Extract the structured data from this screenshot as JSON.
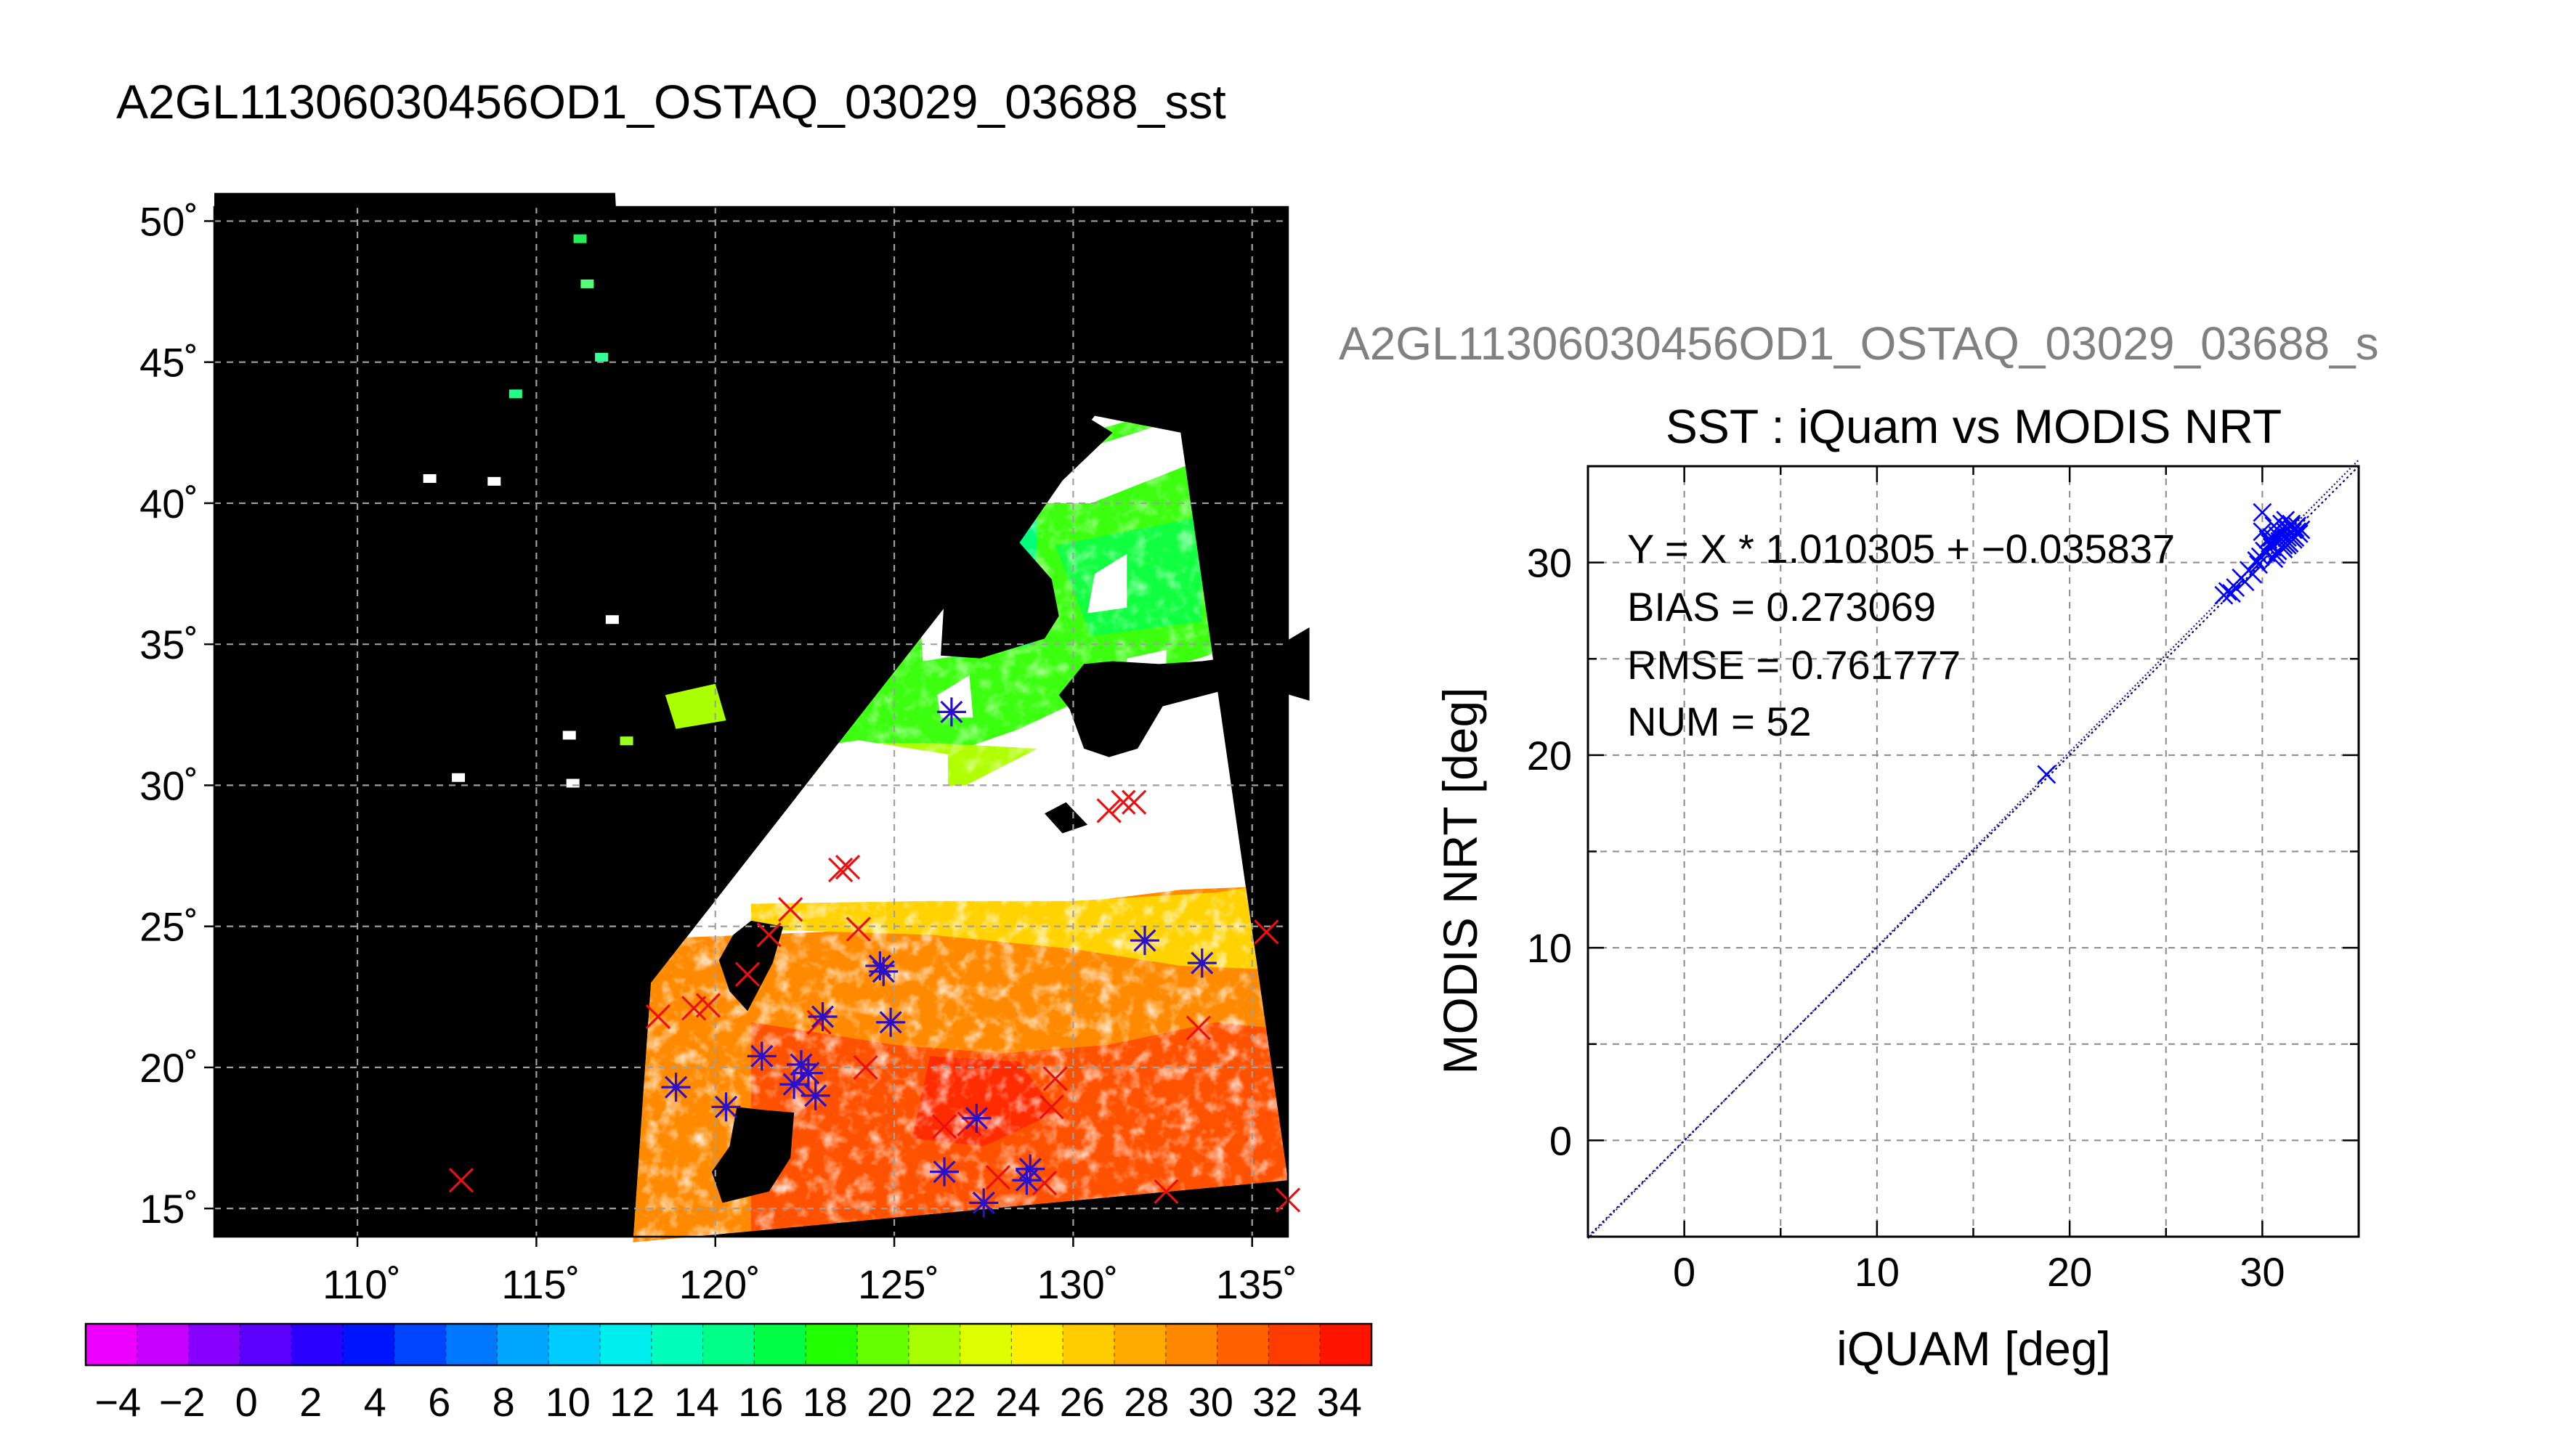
{
  "page_title": "A2GL11306030456OD1_OSTAQ_03029_03688_sst",
  "chart_data": [
    {
      "type": "heatmap",
      "name": "sst-map",
      "map_projection": "equirectangular",
      "lon_range": [
        106,
        136
      ],
      "lat_range": [
        14,
        50.5
      ],
      "lon_ticks": [
        110,
        115,
        120,
        125,
        130,
        135
      ],
      "lat_ticks": [
        15,
        20,
        25,
        30,
        35,
        40,
        45,
        50
      ],
      "lon_tick_labels": [
        "110˚",
        "115˚",
        "120˚",
        "125˚",
        "130˚",
        "135˚"
      ],
      "lat_tick_labels": [
        "15˚",
        "20˚",
        "25˚",
        "30˚",
        "35˚",
        "40˚",
        "45˚",
        "50˚"
      ],
      "grid": true,
      "background_color": "#000000",
      "cloud_color": "#ffffff",
      "swath_corners_lonlat": [
        [
          118.2,
          23.0
        ],
        [
          130.6,
          43.1
        ],
        [
          133.0,
          42.5
        ],
        [
          136.0,
          16.0
        ],
        [
          117.7,
          13.8
        ]
      ],
      "markers_red_x": [
        [
          112.9,
          16.0
        ],
        [
          118.4,
          21.8
        ],
        [
          119.4,
          22.1
        ],
        [
          119.8,
          22.2
        ],
        [
          121.5,
          24.7
        ],
        [
          122.1,
          25.6
        ],
        [
          122.9,
          21.6
        ],
        [
          123.5,
          27.0
        ],
        [
          123.7,
          27.1
        ],
        [
          124.0,
          24.9
        ],
        [
          126.4,
          17.9
        ],
        [
          127.1,
          18.0
        ],
        [
          127.9,
          16.1
        ],
        [
          129.2,
          15.9
        ],
        [
          129.5,
          19.6
        ],
        [
          129.4,
          18.6
        ],
        [
          131.0,
          29.1
        ],
        [
          131.7,
          29.4
        ],
        [
          131.4,
          29.4
        ],
        [
          133.5,
          21.4
        ],
        [
          135.4,
          24.8
        ],
        [
          132.6,
          15.6
        ],
        [
          136.0,
          15.3
        ],
        [
          120.9,
          23.3
        ],
        [
          124.2,
          20.0
        ]
      ],
      "markers_blue_asterisk": [
        [
          118.9,
          19.3
        ],
        [
          120.3,
          18.6
        ],
        [
          121.3,
          20.4
        ],
        [
          122.2,
          19.4
        ],
        [
          122.4,
          20.1
        ],
        [
          122.8,
          19.0
        ],
        [
          123.0,
          21.8
        ],
        [
          124.7,
          23.4
        ],
        [
          124.9,
          21.6
        ],
        [
          126.6,
          32.6
        ],
        [
          126.4,
          16.3
        ],
        [
          127.3,
          18.2
        ],
        [
          127.5,
          15.2
        ],
        [
          128.7,
          16.0
        ],
        [
          128.8,
          16.4
        ],
        [
          132.0,
          24.5
        ],
        [
          133.6,
          23.7
        ],
        [
          122.6,
          19.8
        ],
        [
          124.6,
          23.6
        ]
      ],
      "colorbar": {
        "min": -5,
        "max": 35,
        "tick_values": [
          -4,
          -2,
          0,
          2,
          4,
          6,
          8,
          10,
          12,
          14,
          16,
          18,
          20,
          22,
          24,
          26,
          28,
          30,
          32,
          34
        ],
        "tick_labels": [
          "−4",
          "−2",
          "0",
          "2",
          "4",
          "6",
          "8",
          "10",
          "12",
          "14",
          "16",
          "18",
          "20",
          "22",
          "24",
          "26",
          "28",
          "30",
          "32",
          "34"
        ],
        "colors": [
          "#ee00ff",
          "#c700ff",
          "#8800ff",
          "#5c00ff",
          "#2a00ff",
          "#0014ff",
          "#0044ff",
          "#0077ff",
          "#00a6ff",
          "#00ccff",
          "#00eeee",
          "#00ffbb",
          "#00ff88",
          "#00ff44",
          "#22ff00",
          "#66ff00",
          "#a8ff00",
          "#ddff00",
          "#ffee00",
          "#ffcc00",
          "#ffaa00",
          "#ff8800",
          "#ff6000",
          "#ff3c00",
          "#ff1400"
        ]
      }
    },
    {
      "type": "scatter",
      "name": "sst-scatter",
      "suptitle": "A2GL11306030456OD1_OSTAQ_03029_03688_s",
      "title": "SST : iQuam vs MODIS NRT",
      "xlabel": "iQUAM [deg]",
      "ylabel": "MODIS NRT [deg]",
      "xlim": [
        -5,
        35
      ],
      "ylim": [
        -5,
        35
      ],
      "xticks": [
        0,
        10,
        20,
        30
      ],
      "yticks": [
        0,
        10,
        20,
        30
      ],
      "grid": true,
      "marker_color": "#0000ff",
      "fit": {
        "slope": 1.010305,
        "intercept": -0.035837
      },
      "annotations": [
        "Y = X * 1.010305 + −0.035837",
        "BIAS = 0.273069",
        "RMSE = 0.761777",
        "NUM = 52"
      ],
      "points": [
        [
          18.8,
          19.0
        ],
        [
          28.0,
          28.3
        ],
        [
          28.2,
          28.5
        ],
        [
          28.4,
          28.4
        ],
        [
          28.6,
          28.7
        ],
        [
          28.9,
          29.2
        ],
        [
          29.1,
          29.0
        ],
        [
          29.3,
          29.6
        ],
        [
          29.5,
          29.4
        ],
        [
          29.7,
          30.1
        ],
        [
          29.8,
          29.9
        ],
        [
          30.0,
          32.6
        ],
        [
          30.0,
          31.6
        ],
        [
          30.1,
          30.6
        ],
        [
          30.2,
          30.5
        ],
        [
          30.3,
          31.2
        ],
        [
          30.4,
          31.0
        ],
        [
          30.5,
          30.8
        ],
        [
          30.6,
          31.9
        ],
        [
          30.7,
          30.4
        ],
        [
          30.8,
          31.4
        ],
        [
          30.9,
          31.1
        ],
        [
          31.0,
          32.0
        ],
        [
          31.0,
          31.2
        ],
        [
          31.1,
          30.7
        ],
        [
          31.2,
          31.6
        ],
        [
          31.3,
          31.3
        ],
        [
          31.3,
          31.8
        ],
        [
          31.4,
          31.0
        ],
        [
          31.5,
          31.5
        ],
        [
          31.5,
          32.0
        ],
        [
          31.6,
          31.7
        ],
        [
          31.7,
          31.3
        ],
        [
          31.8,
          31.9
        ],
        [
          31.9,
          31.5
        ],
        [
          32.0,
          31.7
        ],
        [
          31.1,
          30.9
        ],
        [
          30.6,
          30.2
        ],
        [
          31.2,
          32.2
        ],
        [
          31.4,
          31.4
        ],
        [
          30.9,
          31.6
        ],
        [
          31.6,
          31.2
        ],
        [
          31.0,
          31.5
        ],
        [
          30.5,
          31.3
        ],
        [
          31.8,
          31.6
        ],
        [
          31.3,
          30.9
        ],
        [
          30.7,
          31.1
        ],
        [
          31.5,
          31.9
        ],
        [
          29.9,
          30.3
        ],
        [
          31.2,
          31.0
        ],
        [
          30.8,
          30.6
        ],
        [
          31.7,
          31.8
        ]
      ]
    }
  ]
}
